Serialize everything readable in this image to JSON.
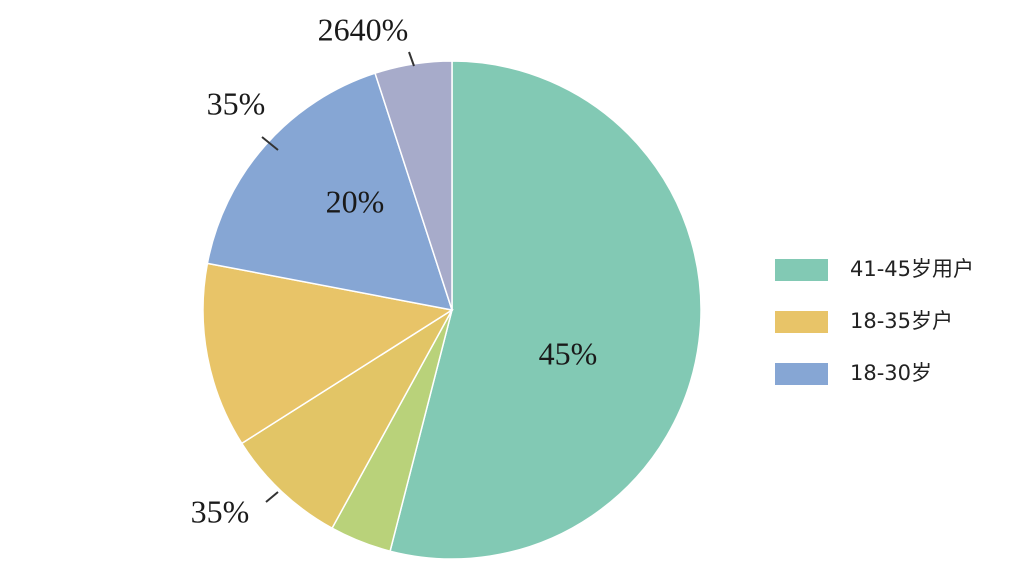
{
  "chart_data": {
    "type": "pie",
    "categories": [
      "41-45岁用户",
      null,
      null,
      "18-35岁户",
      "18-30岁",
      null
    ],
    "values": [
      54,
      4,
      8,
      12,
      17,
      5
    ],
    "colors": [
      "#82c9b4",
      "#b9d27a",
      "#e2c566",
      "#e8c468",
      "#86a6d4",
      "#a7abca"
    ],
    "annotations": [
      "2640%",
      "35%",
      "20%",
      "45%",
      "35%"
    ],
    "legend": "right"
  }
}
